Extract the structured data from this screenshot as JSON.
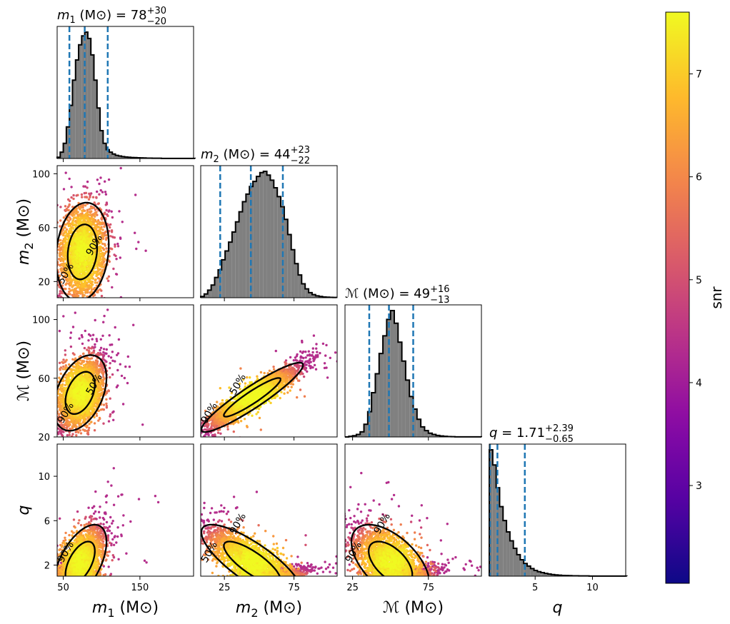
{
  "chart_data": {
    "type": "corner",
    "title_units": "(M⊙)",
    "parameters": [
      {
        "id": "m1",
        "symbol": "m",
        "sub": "1",
        "label": "m1 (M⊙)",
        "title_value": "78",
        "err_plus": "+30",
        "err_minus": "−20",
        "range": [
          42,
          220
        ],
        "ticks": [
          50,
          150
        ],
        "quantiles": [
          58,
          78,
          108
        ],
        "hist": {
          "start": 42,
          "width": 4,
          "counts": [
            0.01,
            0.05,
            0.12,
            0.25,
            0.42,
            0.62,
            0.78,
            0.9,
            0.97,
            1.0,
            0.95,
            0.82,
            0.62,
            0.4,
            0.22,
            0.12,
            0.07,
            0.05,
            0.035,
            0.025,
            0.02,
            0.015,
            0.012,
            0.01,
            0.008,
            0.007,
            0.006,
            0.005,
            0.004,
            0.003,
            0.003,
            0.002,
            0.002,
            0.002,
            0.001,
            0.001,
            0.001,
            0.001,
            0.001,
            0.001,
            0.001,
            0.001,
            0.001,
            0.001,
            0.001
          ]
        }
      },
      {
        "id": "m2",
        "symbol": "m",
        "sub": "2",
        "label": "m2 (M⊙)",
        "title_value": "44",
        "err_plus": "+23",
        "err_minus": "−22",
        "range": [
          8,
          106
        ],
        "ticks": [
          20,
          60,
          100
        ],
        "xticks": [
          25,
          75
        ],
        "quantiles": [
          22,
          44,
          67
        ],
        "hist": {
          "start": 8,
          "width": 2.5,
          "counts": [
            0.01,
            0.03,
            0.06,
            0.1,
            0.16,
            0.22,
            0.3,
            0.37,
            0.44,
            0.52,
            0.6,
            0.68,
            0.76,
            0.82,
            0.88,
            0.92,
            0.96,
            0.99,
            1.0,
            0.97,
            0.93,
            0.87,
            0.8,
            0.72,
            0.62,
            0.5,
            0.38,
            0.27,
            0.18,
            0.11,
            0.07,
            0.04,
            0.025,
            0.015,
            0.01,
            0.006,
            0.004,
            0.003,
            0.002
          ]
        }
      },
      {
        "id": "mc",
        "symbol": "ℳ",
        "sub": "",
        "label": "ℳ (M⊙)",
        "title_value": "49",
        "err_plus": "+16",
        "err_minus": "−13",
        "range": [
          20,
          110
        ],
        "ticks": [
          20,
          60,
          100
        ],
        "xticks": [
          25,
          75
        ],
        "quantiles": [
          36,
          49,
          65
        ],
        "hist": {
          "start": 20,
          "width": 2.5,
          "counts": [
            0.0,
            0.005,
            0.01,
            0.02,
            0.04,
            0.1,
            0.2,
            0.35,
            0.5,
            0.66,
            0.8,
            0.93,
            1.0,
            0.9,
            0.75,
            0.6,
            0.45,
            0.32,
            0.22,
            0.14,
            0.08,
            0.05,
            0.03,
            0.02,
            0.012,
            0.008,
            0.005,
            0.003,
            0.002,
            0.001,
            0.001,
            0.001,
            0.001,
            0.001,
            0.001,
            0.001
          ]
        }
      },
      {
        "id": "q",
        "symbol": "q",
        "sub": "",
        "label": "q",
        "title_value": "1.71",
        "err_plus": "+2.39",
        "err_minus": "−0.65",
        "plain": true,
        "range": [
          1,
          12.9
        ],
        "ticks": [
          2,
          6,
          10
        ],
        "xticks": [
          5,
          10
        ],
        "quantiles": [
          1.06,
          1.71,
          4.1
        ],
        "hist": {
          "start": 1,
          "width": 0.3,
          "counts": [
            1.0,
            0.88,
            0.7,
            0.55,
            0.44,
            0.35,
            0.28,
            0.22,
            0.17,
            0.13,
            0.1,
            0.08,
            0.06,
            0.045,
            0.035,
            0.028,
            0.022,
            0.017,
            0.013,
            0.01,
            0.008,
            0.006,
            0.005,
            0.004,
            0.003,
            0.003,
            0.002,
            0.002,
            0.002,
            0.001,
            0.001,
            0.001,
            0.001,
            0.001,
            0.001,
            0.001,
            0.001,
            0.001,
            0.001,
            0.001
          ]
        }
      }
    ],
    "pairs": [
      {
        "x": "m1",
        "y": "m2",
        "center": [
          75,
          42
        ],
        "sd": [
          16,
          17
        ],
        "rho": 0.15,
        "n": 2600,
        "contour_labels": [
          "50%",
          "90%"
        ]
      },
      {
        "x": "m1",
        "y": "mc",
        "center": [
          72,
          50
        ],
        "sd": [
          16,
          12
        ],
        "rho": 0.4,
        "n": 2600,
        "contour_labels": [
          "90%",
          "50%"
        ]
      },
      {
        "x": "m2",
        "y": "mc",
        "center": [
          45,
          47
        ],
        "sd": [
          17,
          11
        ],
        "rho": 0.93,
        "n": 2600,
        "contour_labels": [
          "90%",
          "50%"
        ]
      },
      {
        "x": "m1",
        "y": "q",
        "center": [
          72,
          2.2
        ],
        "sd": [
          16,
          1.6
        ],
        "rho": 0.55,
        "n": 2600,
        "contour_labels": [
          "90%"
        ]
      },
      {
        "x": "m2",
        "y": "q",
        "center": [
          45,
          2.2
        ],
        "sd": [
          17,
          1.6
        ],
        "rho": -0.8,
        "n": 2600,
        "contour_labels": [
          "50%",
          "90%"
        ]
      },
      {
        "x": "mc",
        "y": "q",
        "center": [
          50,
          2.2
        ],
        "sd": [
          12,
          1.6
        ],
        "rho": -0.55,
        "n": 2600,
        "contour_labels": [
          "90%",
          "90%"
        ]
      }
    ],
    "colorbar": {
      "label": "snr",
      "min": 2.05,
      "max": 7.6,
      "ticks": [
        3,
        4,
        5,
        6,
        7
      ],
      "colormap": "plasma"
    },
    "colors": {
      "hist_fill": "#808080",
      "hist_edge": "#000000",
      "quantile_line": "#1f77b4",
      "contour": "#000000"
    }
  }
}
